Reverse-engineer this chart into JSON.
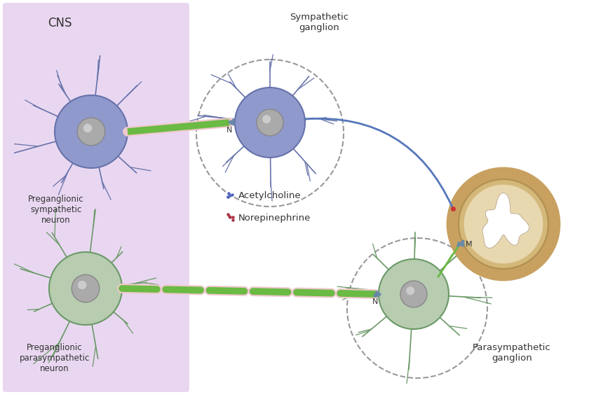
{
  "bg_color": "#ffffff",
  "cns_box_color": "#dbbde8",
  "cns_label": "CNS",
  "symp_neuron_color": "#9099cc",
  "symp_neuron_edge": "#6672aa",
  "para_neuron_color": "#b8ccb0",
  "para_neuron_edge": "#6a9966",
  "axon_green": "#6aba44",
  "axon_blue": "#5577bb",
  "myelin_pink": "#f0c8cc",
  "organ_outer": "#c8a060",
  "organ_mid": "#d4b87a",
  "organ_inner": "#e8d8b0",
  "nucleus_color": "#aaaaaa",
  "nucleus_edge": "#888888",
  "label_cns": "CNS",
  "label_pre_symp": "Preganglionic\nsympathetic\nneuron",
  "label_pre_para": "Preganglionic\nparasympathetic\nneuron",
  "label_symp_gang": "Sympathetic\nganglion",
  "label_para_gang": "Parasympathetic\nganglion",
  "label_ach": "Acetylcholine",
  "label_norepi": "Norepinephrine",
  "ach_dot_color": "#5566bb",
  "norepi_dot_color": "#aa3344",
  "synapse_color": "#6688aa",
  "label_N": "N",
  "label_M": "M",
  "text_color": "#333333",
  "dashed_circle_color": "#999999"
}
